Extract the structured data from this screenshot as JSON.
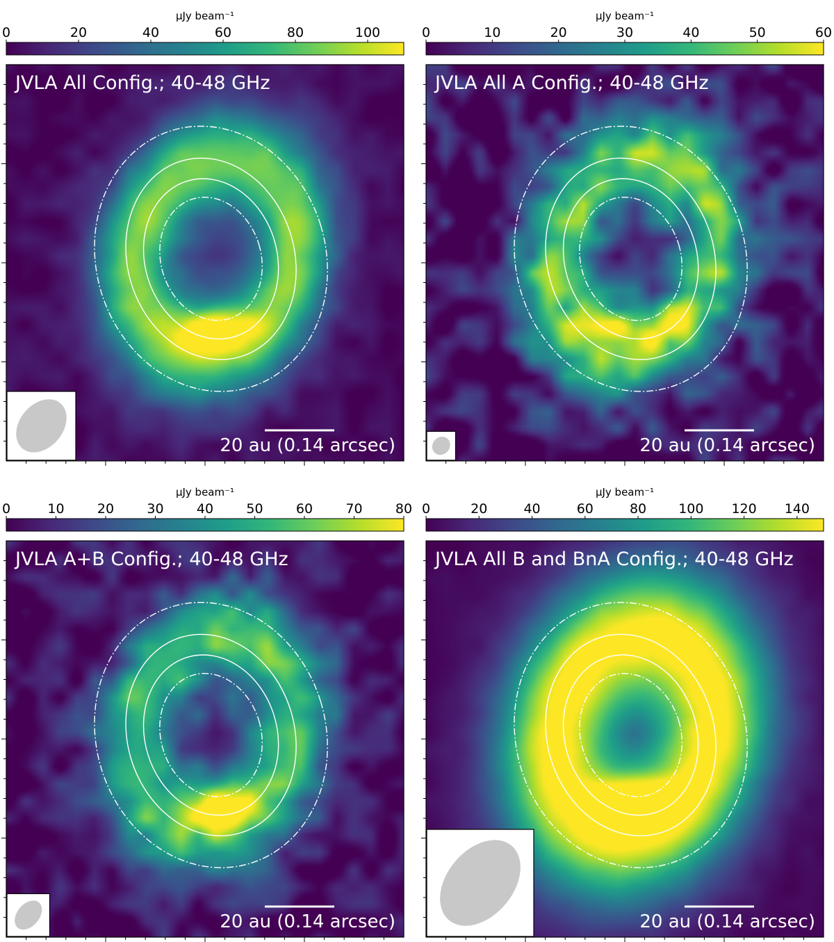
{
  "colormap": [
    "#440154",
    "#482878",
    "#3e4a89",
    "#31688e",
    "#26828e",
    "#1f9e89",
    "#35b779",
    "#6ece58",
    "#b5de2b",
    "#fde725"
  ],
  "colors": {
    "contour": "#ffffff",
    "beam": "#c8c8c8",
    "background": "#440154"
  },
  "icons": {
    "beam": "beam-ellipse-icon",
    "scalebar": "scalebar-icon"
  },
  "chart_data": [
    {
      "type": "heatmap",
      "title": "JVLA All Config.; 40-48 GHz",
      "colorbar_label": "μJy beam⁻¹",
      "colorbar_range": [
        0,
        110
      ],
      "colorbar_ticks": [
        "0",
        "20",
        "40",
        "60",
        "80",
        "100"
      ],
      "colorbar_tick_values": [
        0,
        20,
        40,
        60,
        80,
        100
      ],
      "scalebar_label": "20 au (0.14 arcsec)",
      "beam": {
        "major_au": 17,
        "minor_au": 12.4
      },
      "ring_peak_fraction": 0.68,
      "south_peak_fraction": 1.0,
      "noise_fraction": 0.12
    },
    {
      "type": "heatmap",
      "title": "JVLA All A Config.; 40-48 GHz",
      "colorbar_label": "μJy beam⁻¹",
      "colorbar_range": [
        0,
        60
      ],
      "colorbar_ticks": [
        "0",
        "10",
        "20",
        "30",
        "40",
        "50",
        "60"
      ],
      "colorbar_tick_values": [
        0,
        10,
        20,
        30,
        40,
        50,
        60
      ],
      "scalebar_label": "20 au (0.14 arcsec)",
      "beam": {
        "major_au": 5.5,
        "minor_au": 4.9
      },
      "ring_peak_fraction": 0.62,
      "south_peak_fraction": 0.78,
      "noise_fraction": 0.42
    },
    {
      "type": "heatmap",
      "title": "JVLA A+B Config.; 40-48 GHz",
      "colorbar_label": "μJy beam⁻¹",
      "colorbar_range": [
        0,
        80
      ],
      "colorbar_ticks": [
        "0",
        "10",
        "20",
        "30",
        "40",
        "50",
        "60",
        "70",
        "80"
      ],
      "colorbar_tick_values": [
        0,
        10,
        20,
        30,
        40,
        50,
        60,
        70,
        80
      ],
      "scalebar_label": "20 au (0.14 arcsec)",
      "beam": {
        "major_au": 9.5,
        "minor_au": 6.4
      },
      "ring_peak_fraction": 0.58,
      "south_peak_fraction": 0.95,
      "noise_fraction": 0.3
    },
    {
      "type": "heatmap",
      "title": "JVLA All B and BnA Config.; 40-48 GHz",
      "colorbar_label": "μJy beam⁻¹",
      "colorbar_range": [
        0,
        150
      ],
      "colorbar_ticks": [
        "0",
        "20",
        "40",
        "60",
        "80",
        "100",
        "120",
        "140"
      ],
      "colorbar_tick_values": [
        0,
        20,
        40,
        60,
        80,
        100,
        120,
        140
      ],
      "scalebar_label": "20 au (0.14 arcsec)",
      "beam": {
        "major_au": 28,
        "minor_au": 19
      },
      "ring_peak_fraction": 0.85,
      "south_peak_fraction": 1.0,
      "noise_fraction": 0.05
    }
  ]
}
